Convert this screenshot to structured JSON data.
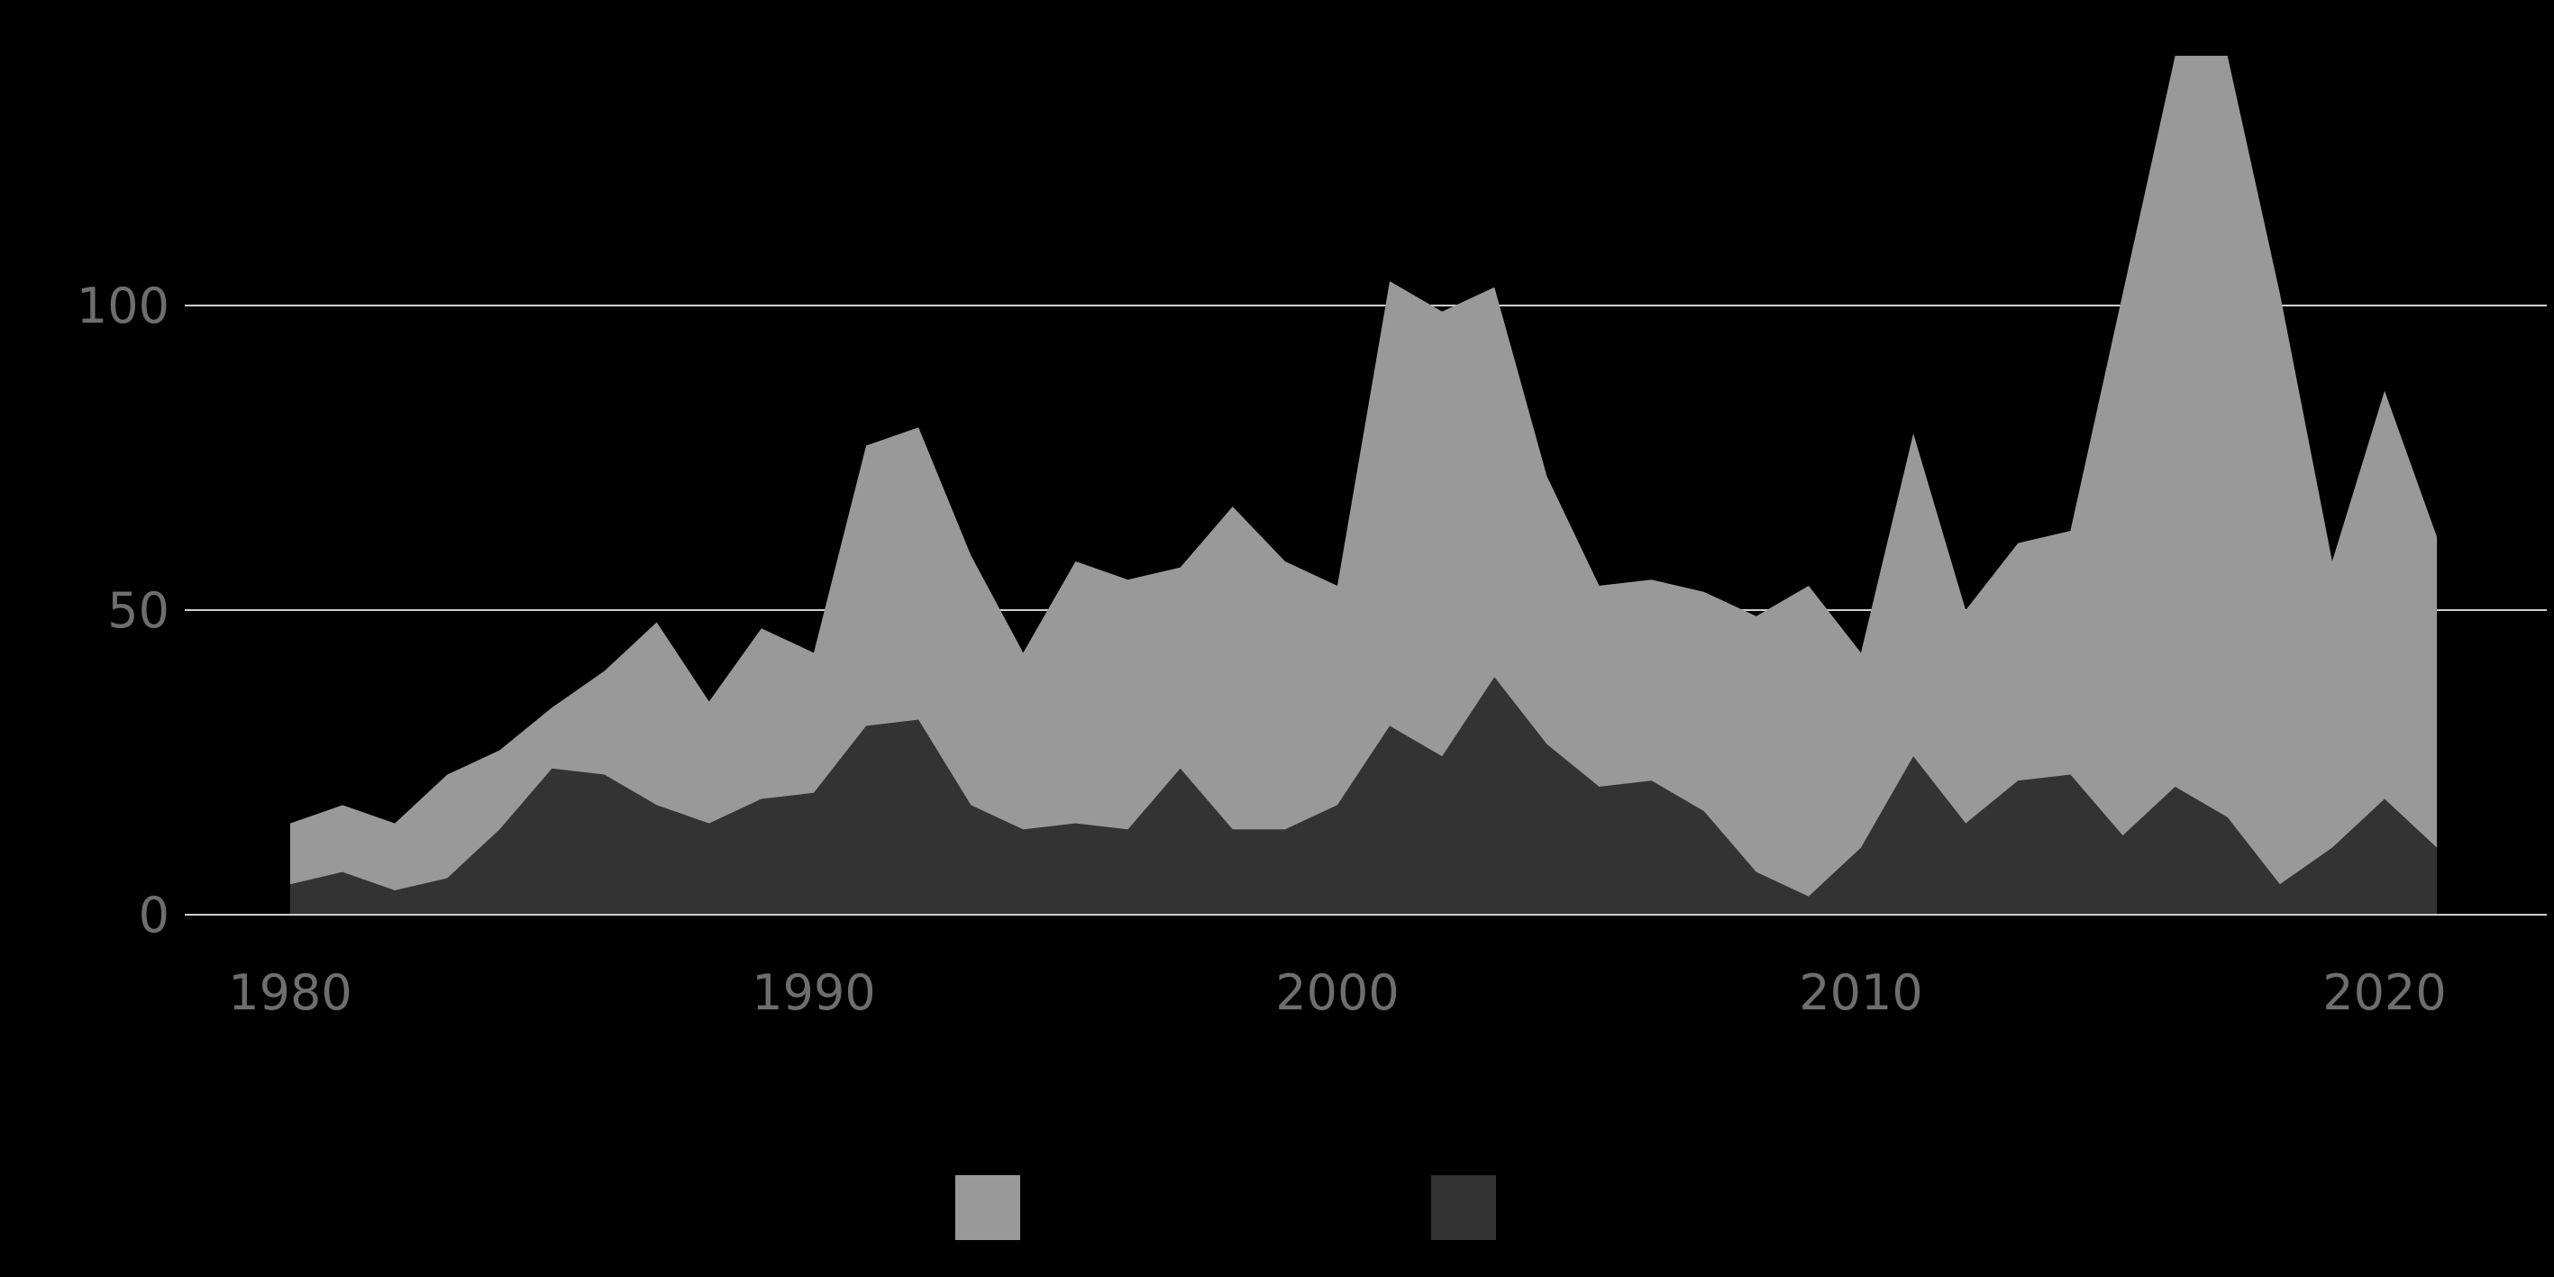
{
  "chart_data": {
    "type": "area",
    "stacked": true,
    "grid": "horizontal",
    "legend_position": "bottom-center",
    "xlim": [
      1978,
      2023
    ],
    "ylim": [
      0,
      150
    ],
    "x_ticks": [
      1980,
      1990,
      2000,
      2010,
      2020
    ],
    "y_ticks": [
      0,
      50,
      100
    ],
    "x": [
      1980,
      1981,
      1982,
      1983,
      1984,
      1985,
      1986,
      1987,
      1988,
      1989,
      1990,
      1991,
      1992,
      1993,
      1994,
      1995,
      1996,
      1997,
      1998,
      1999,
      2000,
      2001,
      2002,
      2003,
      2004,
      2005,
      2006,
      2007,
      2008,
      2009,
      2010,
      2011,
      2012,
      2013,
      2014,
      2015,
      2016,
      2017,
      2018,
      2019,
      2020,
      2021
    ],
    "series": [
      {
        "color": "#333333",
        "values": [
          5,
          7,
          4,
          6,
          14,
          24,
          23,
          18,
          15,
          19,
          20,
          31,
          32,
          18,
          14,
          15,
          14,
          24,
          14,
          14,
          18,
          31,
          26,
          39,
          28,
          21,
          22,
          17,
          7,
          3,
          11,
          26,
          15,
          22,
          23,
          13,
          21,
          16,
          5,
          11,
          19,
          11
        ]
      },
      {
        "color": "#999999",
        "values": [
          10,
          11,
          11,
          17,
          13,
          10,
          17,
          30,
          20,
          28,
          23,
          46,
          48,
          41,
          29,
          43,
          41,
          33,
          53,
          44,
          36,
          73,
          73,
          64,
          44,
          33,
          33,
          36,
          42,
          51,
          32,
          53,
          35,
          39,
          40,
          89,
          120,
          125,
          97,
          47,
          67,
          51
        ]
      }
    ],
    "legend": [
      {
        "color": "#999999"
      },
      {
        "color": "#333333"
      }
    ]
  }
}
